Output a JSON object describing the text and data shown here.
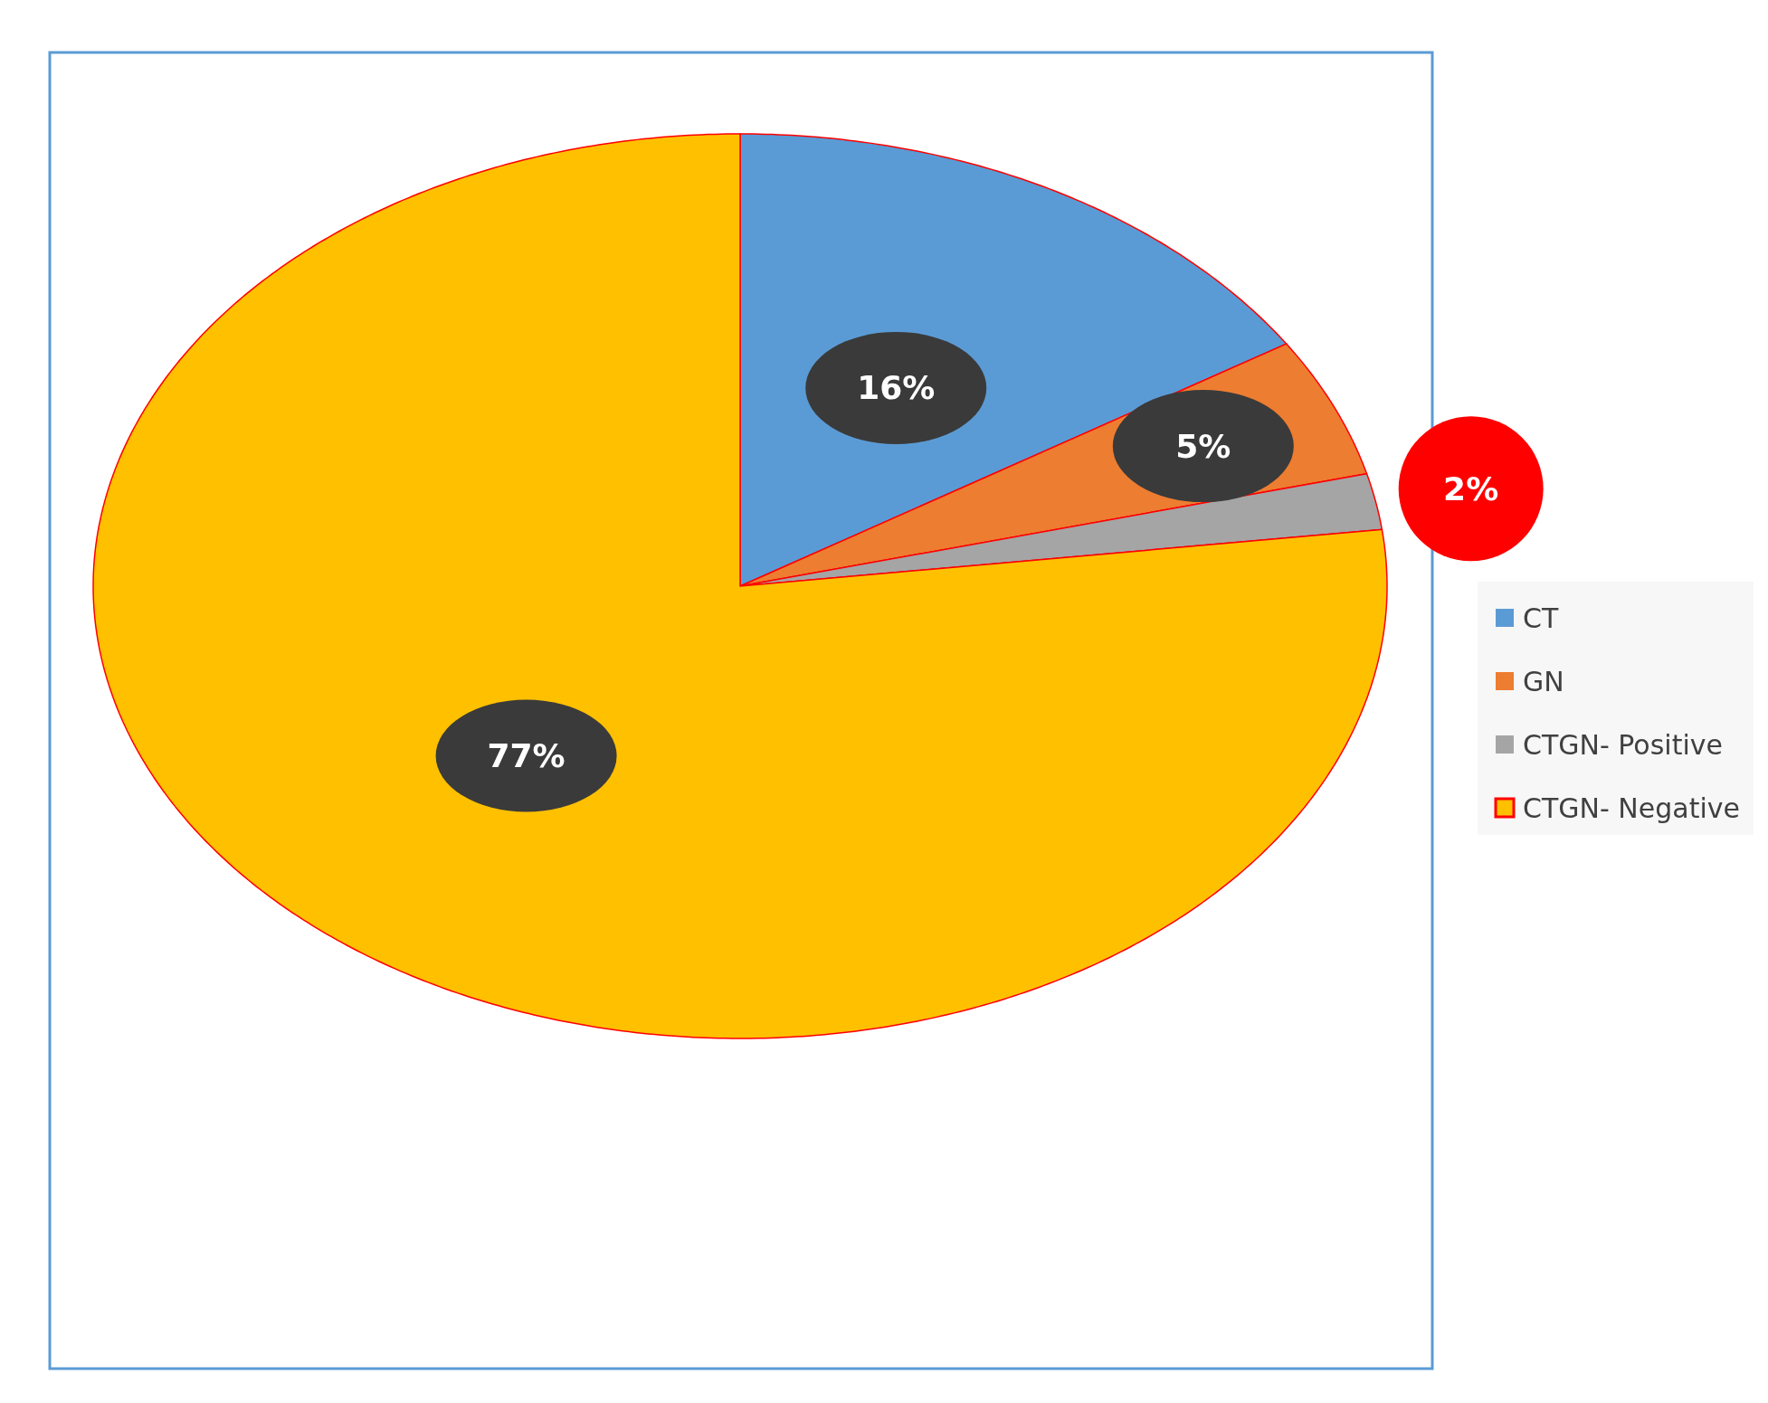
{
  "chart_data": {
    "type": "pie",
    "categories": [
      "CT",
      "GN",
      "CTGN- Positive",
      "CTGN- Negative"
    ],
    "values": [
      16,
      5,
      2,
      77
    ],
    "colors": [
      "#5b9bd5",
      "#ed7d31",
      "#a5a5a5",
      "#ffc000"
    ],
    "value_labels": [
      "16%",
      "5%",
      "2%",
      "77%"
    ],
    "legend": "right"
  }
}
